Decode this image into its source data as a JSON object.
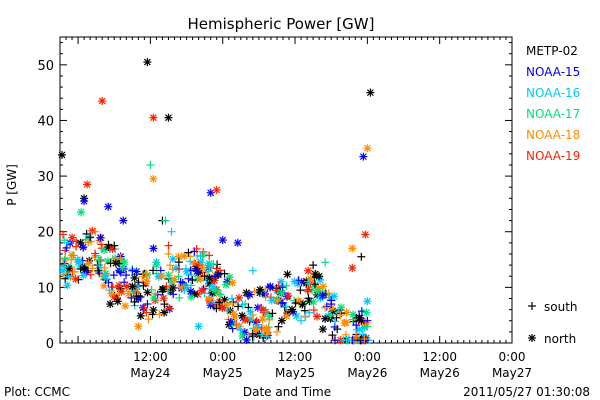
{
  "footer": {
    "plot_credit": "Plot: CCMC",
    "timestamp": "2011/05/27 01:30:08"
  },
  "chart_data": {
    "type": "scatter",
    "title": "Hemispheric Power [GW]",
    "xlabel": "Date and Time",
    "ylabel": "P [GW]",
    "x_range": [
      "2011-05-23 21:00",
      "2011-05-27 00:00"
    ],
    "ylim": [
      0,
      55
    ],
    "y_ticks": [
      0,
      10,
      20,
      30,
      40,
      50
    ],
    "x_ticks": [
      {
        "time": "2011-05-24 12:00",
        "label": "12:00",
        "date_label": "May24"
      },
      {
        "time": "2011-05-25 00:00",
        "label": "0:00",
        "date_label": "May25"
      },
      {
        "time": "2011-05-25 12:00",
        "label": "12:00",
        "date_label": "May25"
      },
      {
        "time": "2011-05-26 00:00",
        "label": "0:00",
        "date_label": "May26"
      },
      {
        "time": "2011-05-26 12:00",
        "label": "12:00",
        "date_label": "May26"
      },
      {
        "time": "2011-05-27 00:00",
        "label": "0:00",
        "date_label": "May27"
      }
    ],
    "grid": false,
    "legend_position": "right",
    "marker_legend": [
      {
        "symbol": "+",
        "label": "south"
      },
      {
        "symbol": "*",
        "label": "north"
      }
    ],
    "series": [
      {
        "name": "METP-02",
        "color": "#000000",
        "north": [
          [
            "2011-05-23 21:20",
            33.8
          ],
          [
            "2011-05-24 01:00",
            26.0
          ],
          [
            "2011-05-24 05:20",
            7.0
          ],
          [
            "2011-05-24 11:30",
            50.5
          ],
          [
            "2011-05-24 15:00",
            40.5
          ],
          [
            "2011-05-25 11:30",
            6.0
          ],
          [
            "2011-05-25 16:00",
            12.0
          ],
          [
            "2011-05-25 23:00",
            4.0
          ],
          [
            "2011-05-26 00:30",
            45.0
          ]
        ],
        "south": [
          [
            "2011-05-24 02:00",
            19.0
          ],
          [
            "2011-05-24 06:00",
            17.5
          ],
          [
            "2011-05-24 14:00",
            22.0
          ],
          [
            "2011-05-24 21:00",
            12.0
          ],
          [
            "2011-05-25 15:00",
            14.0
          ],
          [
            "2011-05-25 19:00",
            2.5
          ],
          [
            "2011-05-25 23:00",
            15.5
          ]
        ]
      },
      {
        "name": "NOAA-15",
        "color": "#0000ff",
        "north": [
          [
            "2011-05-24 01:00",
            25.5
          ],
          [
            "2011-05-24 05:00",
            24.5
          ],
          [
            "2011-05-24 07:30",
            22.0
          ],
          [
            "2011-05-24 12:30",
            17.0
          ],
          [
            "2011-05-24 22:00",
            27.0
          ],
          [
            "2011-05-25 00:00",
            18.5
          ],
          [
            "2011-05-25 02:30",
            18.0
          ],
          [
            "2011-05-25 23:20",
            33.5
          ]
        ],
        "south": [
          [
            "2011-05-24 09:00",
            13.0
          ],
          [
            "2011-05-24 17:00",
            11.0
          ],
          [
            "2011-05-25 18:00",
            7.0
          ],
          [
            "2011-05-26 00:00",
            4.0
          ]
        ]
      },
      {
        "name": "NOAA-16",
        "color": "#00c8ff",
        "north": [
          [
            "2011-05-23 21:30",
            13.0
          ],
          [
            "2011-05-24 04:30",
            12.0
          ],
          [
            "2011-05-24 13:00",
            14.5
          ],
          [
            "2011-05-24 20:00",
            3.0
          ],
          [
            "2011-05-26 00:00",
            7.5
          ]
        ],
        "south": [
          [
            "2011-05-24 15:30",
            20.0
          ],
          [
            "2011-05-25 05:00",
            13.0
          ],
          [
            "2011-05-25 13:00",
            4.0
          ]
        ]
      },
      {
        "name": "NOAA-17",
        "color": "#00e080",
        "north": [
          [
            "2011-05-24 00:30",
            23.5
          ],
          [
            "2011-05-24 13:00",
            14.0
          ]
        ],
        "south": [
          [
            "2011-05-24 12:00",
            32.0
          ],
          [
            "2011-05-24 14:30",
            22.0
          ],
          [
            "2011-05-25 17:00",
            14.5
          ],
          [
            "2011-05-26 00:00",
            3.0
          ]
        ]
      },
      {
        "name": "NOAA-18",
        "color": "#ff8c00",
        "north": [
          [
            "2011-05-24 12:30",
            29.5
          ],
          [
            "2011-05-25 21:30",
            17.0
          ],
          [
            "2011-05-26 00:00",
            35.0
          ],
          [
            "2011-05-24 10:00",
            3.0
          ]
        ],
        "south": [
          [
            "2011-05-24 15:00",
            16.0
          ],
          [
            "2011-05-25 09:00",
            2.0
          ]
        ]
      },
      {
        "name": "NOAA-19",
        "color": "#ff2000",
        "north": [
          [
            "2011-05-24 01:30",
            28.5
          ],
          [
            "2011-05-24 04:00",
            43.5
          ],
          [
            "2011-05-24 12:30",
            40.5
          ],
          [
            "2011-05-24 23:00",
            27.5
          ],
          [
            "2011-05-25 21:30",
            13.5
          ],
          [
            "2011-05-25 23:40",
            19.5
          ]
        ],
        "south": [
          [
            "2011-05-23 21:30",
            19.5
          ],
          [
            "2011-05-24 15:00",
            17.5
          ],
          [
            "2011-05-24 20:00",
            14.0
          ]
        ]
      }
    ],
    "dense_band": {
      "description_free": true,
      "start": "2011-05-23 21:30",
      "end": "2011-05-26 00:15"
    }
  }
}
